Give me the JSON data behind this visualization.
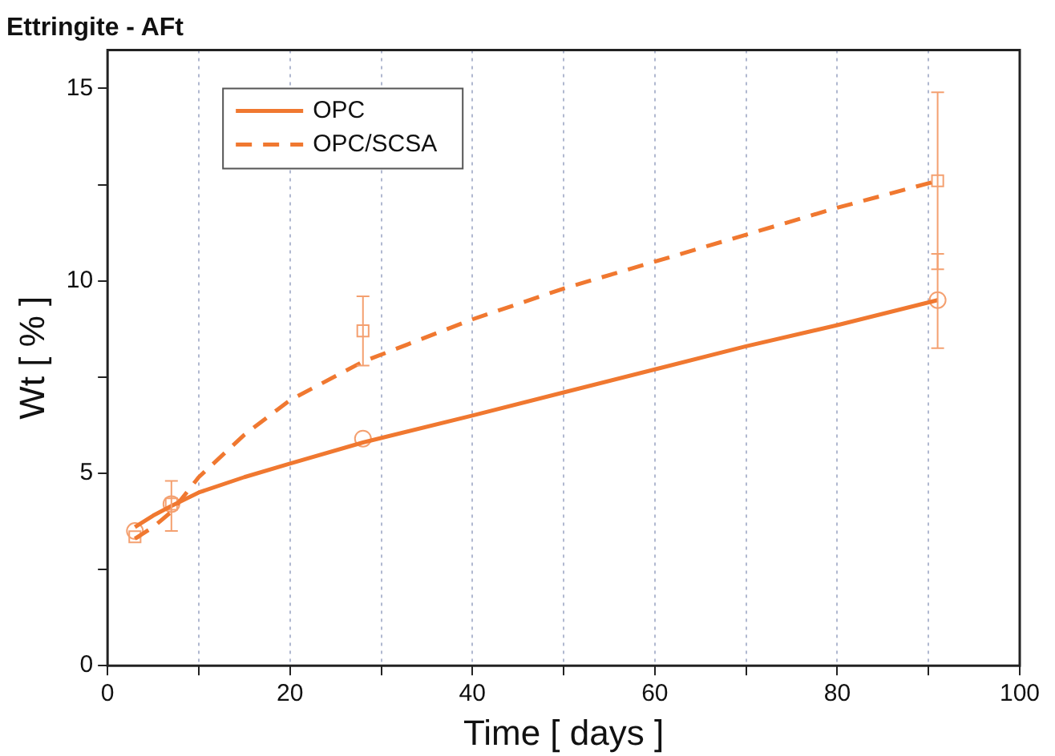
{
  "chart_data": {
    "type": "line",
    "title": "Ettringite - AFt",
    "xlabel": "Time [ days ]",
    "ylabel": "Wt [ % ]",
    "xlim": [
      0,
      100
    ],
    "ylim": [
      0,
      16
    ],
    "xticks": [
      0,
      {
        "value": 10,
        "label": null
      },
      20,
      {
        "value": 30,
        "label": null
      },
      40,
      {
        "value": 50,
        "label": null
      },
      60,
      {
        "value": 70,
        "label": null
      },
      80,
      {
        "value": 90,
        "label": null
      },
      100
    ],
    "yticks": [
      0,
      {
        "value": 2.5,
        "label": null
      },
      5,
      {
        "value": 7.5,
        "label": null
      },
      10,
      {
        "value": 12.5,
        "label": null
      },
      15
    ],
    "grid": "x",
    "legend": "top left",
    "series": [
      {
        "type": "line",
        "name": "OPC",
        "color": "#f07830",
        "line_style": "solid",
        "x": [
          3,
          5,
          7,
          10,
          15,
          20,
          28,
          40,
          50,
          60,
          70,
          80,
          91
        ],
        "values": [
          3.6,
          3.9,
          4.15,
          4.5,
          4.9,
          5.25,
          5.8,
          6.5,
          7.1,
          7.7,
          8.3,
          8.85,
          9.5
        ]
      },
      {
        "type": "line",
        "name": "OPC/SCSA",
        "color": "#f07830",
        "line_style": "dashed",
        "x": [
          3,
          5,
          7,
          10,
          15,
          20,
          28,
          40,
          50,
          60,
          70,
          80,
          91
        ],
        "values": [
          3.3,
          3.6,
          4.0,
          4.9,
          6.0,
          6.9,
          7.9,
          9.0,
          9.8,
          10.5,
          11.2,
          11.9,
          12.6
        ]
      },
      {
        "type": "scatter",
        "color": "#f4a070",
        "marker": "circle",
        "x": [
          3,
          7,
          28,
          91
        ],
        "values": [
          3.5,
          4.2,
          5.9,
          9.5
        ],
        "errors": [
          null,
          null,
          null,
          [
            8.25,
            10.7
          ]
        ]
      },
      {
        "type": "scatter",
        "color": "#f4a070",
        "marker": "square",
        "x": [
          3,
          7,
          28,
          91
        ],
        "values": [
          3.35,
          4.2,
          8.7,
          12.6
        ],
        "errors": [
          null,
          [
            3.5,
            4.8
          ],
          [
            7.8,
            9.6
          ],
          [
            10.3,
            14.9
          ]
        ]
      }
    ]
  }
}
